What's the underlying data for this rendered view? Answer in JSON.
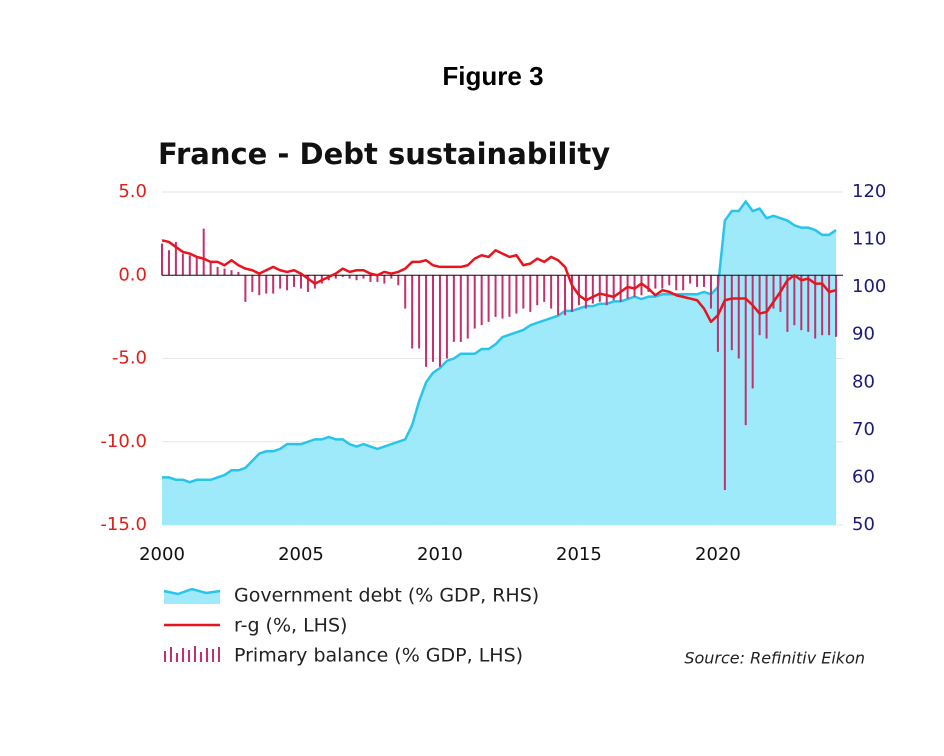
{
  "figure_label": "Figure 3",
  "chart_data": {
    "type": "combo",
    "title": "France - Debt sustainability",
    "source": "Source: Refinitiv Eikon",
    "x": [
      2000,
      2000.25,
      2000.5,
      2000.75,
      2001,
      2001.25,
      2001.5,
      2001.75,
      2002,
      2002.25,
      2002.5,
      2002.75,
      2003,
      2003.25,
      2003.5,
      2003.75,
      2004,
      2004.25,
      2004.5,
      2004.75,
      2005,
      2005.25,
      2005.5,
      2005.75,
      2006,
      2006.25,
      2006.5,
      2006.75,
      2007,
      2007.25,
      2007.5,
      2007.75,
      2008,
      2008.25,
      2008.5,
      2008.75,
      2009,
      2009.25,
      2009.5,
      2009.75,
      2010,
      2010.25,
      2010.5,
      2010.75,
      2011,
      2011.25,
      2011.5,
      2011.75,
      2012,
      2012.25,
      2012.5,
      2012.75,
      2013,
      2013.25,
      2013.5,
      2013.75,
      2014,
      2014.25,
      2014.5,
      2014.75,
      2015,
      2015.25,
      2015.5,
      2015.75,
      2016,
      2016.25,
      2016.5,
      2016.75,
      2017,
      2017.25,
      2017.5,
      2017.75,
      2018,
      2018.25,
      2018.5,
      2018.75,
      2019,
      2019.25,
      2019.5,
      2019.75,
      2020,
      2020.25,
      2020.5,
      2020.75,
      2021,
      2021.25,
      2021.5,
      2021.75,
      2022,
      2022.25,
      2022.5,
      2022.75,
      2023,
      2023.25,
      2023.5,
      2023.75,
      2024,
      2024.25
    ],
    "series": [
      {
        "name": "Government debt (% GDP, RHS)",
        "kind": "area",
        "axis": "y2",
        "color": "#9ee9fa",
        "edge_color": "#29c4ee",
        "values": [
          60,
          60,
          59.5,
          59.5,
          59,
          59.5,
          59.5,
          59.5,
          60,
          60.5,
          61.5,
          61.5,
          62,
          63.5,
          65,
          65.5,
          65.5,
          66,
          67,
          67,
          67,
          67.5,
          68,
          68,
          68.5,
          68,
          68,
          67,
          66.5,
          67,
          66.5,
          66,
          66.5,
          67,
          67.5,
          68,
          71,
          76,
          80,
          82,
          83,
          84.5,
          85,
          86,
          86,
          86,
          87,
          87,
          88,
          89.5,
          90,
          90.5,
          91,
          92,
          92.5,
          93,
          93.5,
          94,
          95,
          95,
          95.5,
          96,
          96,
          96.5,
          96.5,
          97,
          97,
          97.5,
          98,
          97.5,
          98,
          98,
          98.5,
          98.5,
          98.5,
          98.5,
          98.5,
          98.5,
          99,
          98.5,
          100,
          114,
          116,
          116,
          118,
          116,
          116.5,
          114.5,
          115,
          114.5,
          114,
          113,
          112.5,
          112.5,
          112,
          111,
          111,
          112
        ]
      },
      {
        "name": "r-g (%, LHS)",
        "kind": "line",
        "axis": "y",
        "color": "#e8141e",
        "values": [
          2.1,
          2.0,
          1.7,
          1.4,
          1.3,
          1.1,
          1.0,
          0.8,
          0.8,
          0.6,
          0.9,
          0.6,
          0.4,
          0.3,
          0.1,
          0.3,
          0.5,
          0.3,
          0.2,
          0.3,
          0.1,
          -0.2,
          -0.5,
          -0.3,
          -0.1,
          0.1,
          0.4,
          0.2,
          0.3,
          0.3,
          0.1,
          0,
          0.2,
          0.1,
          0.2,
          0.4,
          0.8,
          0.8,
          0.9,
          0.6,
          0.5,
          0.5,
          0.5,
          0.5,
          0.6,
          1.0,
          1.2,
          1.1,
          1.5,
          1.3,
          1.1,
          1.2,
          0.6,
          0.7,
          1.0,
          0.8,
          1.1,
          0.9,
          0.5,
          -0.6,
          -1.2,
          -1.5,
          -1.3,
          -1.1,
          -1.2,
          -1.3,
          -1.0,
          -0.7,
          -0.8,
          -0.5,
          -0.8,
          -1.2,
          -0.9,
          -1.0,
          -1.2,
          -1.3,
          -1.4,
          -1.5,
          -2.0,
          -2.8,
          -2.4,
          -1.5,
          -1.4,
          -1.4,
          -1.4,
          -1.8,
          -2.3,
          -2.2,
          -1.6,
          -1.0,
          -0.3,
          0,
          -0.3,
          -0.2,
          -0.5,
          -0.5,
          -1.0,
          -0.9
        ]
      },
      {
        "name": "Primary balance (% GDP, LHS)",
        "kind": "bar",
        "axis": "y",
        "color": "#c2306d",
        "values": [
          1.9,
          1.5,
          2.0,
          1.3,
          1.2,
          1.1,
          2.8,
          0.8,
          0.5,
          0.4,
          0.3,
          0.2,
          -1.6,
          -1.0,
          -1.2,
          -1.1,
          -1.1,
          -0.8,
          -0.9,
          -0.7,
          -0.8,
          -1.0,
          -0.8,
          -0.5,
          -0.3,
          -0.2,
          -0.1,
          -0.2,
          -0.3,
          -0.2,
          -0.4,
          -0.4,
          -0.5,
          -0.2,
          -0.6,
          -2.0,
          -4.4,
          -4.4,
          -5.5,
          -5.2,
          -5.5,
          -5.0,
          -4.0,
          -4.0,
          -3.8,
          -3.2,
          -3.0,
          -2.8,
          -2.5,
          -2.6,
          -2.5,
          -2.3,
          -2.0,
          -2.2,
          -1.8,
          -1.6,
          -2.0,
          -2.4,
          -2.4,
          -2.2,
          -1.8,
          -2.0,
          -1.7,
          -1.6,
          -1.8,
          -1.5,
          -1.6,
          -1.4,
          -1.3,
          -1.2,
          -1.0,
          -0.8,
          -0.8,
          -0.6,
          -0.9,
          -0.9,
          -0.5,
          -0.7,
          -0.7,
          -2.0,
          -4.6,
          -12.9,
          -4.5,
          -5.0,
          -9.0,
          -6.8,
          -3.6,
          -3.8,
          -2.0,
          -2.2,
          -3.4,
          -3.0,
          -3.3,
          -3.4,
          -3.8,
          -3.6,
          -3.6,
          -3.7
        ]
      }
    ],
    "xlim": [
      2000,
      2024.5
    ],
    "xticks": [
      2000,
      2005,
      2010,
      2015,
      2020
    ],
    "ylim": [
      -15,
      5
    ],
    "yticks": [
      {
        "value": 5,
        "label": "5.0"
      },
      {
        "value": 0,
        "label": "0.0"
      },
      {
        "value": -5,
        "label": "-5.0"
      },
      {
        "value": -10,
        "label": "-10.0"
      },
      {
        "value": -15,
        "label": "-15.0"
      }
    ],
    "y2lim": [
      50,
      120
    ],
    "y2ticks": [
      50,
      60,
      70,
      80,
      90,
      100,
      110,
      120
    ],
    "grid": true,
    "legend": "bottom-left"
  }
}
